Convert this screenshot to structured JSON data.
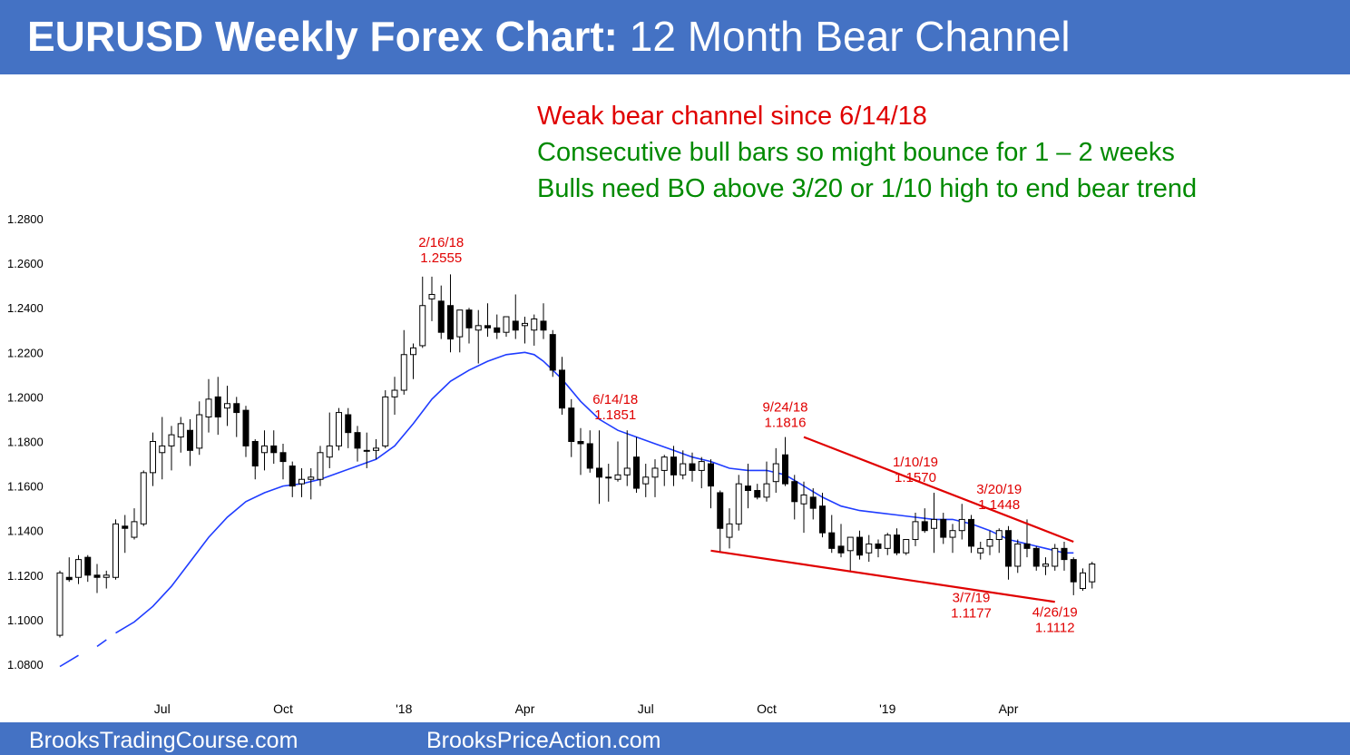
{
  "header": {
    "title_bold": "EURUSD Weekly Forex Chart:",
    "title_rest": "12 Month Bear Channel"
  },
  "notes": [
    {
      "text": "Weak bear channel since 6/14/18",
      "color": "#e00000"
    },
    {
      "text": "Consecutive bull bars so might bounce for 1 – 2 weeks",
      "color": "#008a00"
    },
    {
      "text": "Bulls need BO above 3/20 or 1/10 high to end bear trend",
      "color": "#008a00"
    }
  ],
  "footer": {
    "left": "BrooksTradingCourse.com",
    "right": "BrooksPriceAction.com"
  },
  "colors": {
    "accent": "#4472c4",
    "annotation": "#e00000",
    "moving_average": "#1f3cff",
    "bear_candle": "#000000",
    "bull_candle": "#ffffff"
  },
  "chart_data": {
    "type": "candlestick",
    "title": "",
    "xlabel": "",
    "ylabel": "",
    "ylim": [
      1.07,
      1.285
    ],
    "y_ticks": [
      "1.0800",
      "1.1000",
      "1.1200",
      "1.1400",
      "1.1600",
      "1.1800",
      "1.2000",
      "1.2200",
      "1.2400",
      "1.2600",
      "1.2800"
    ],
    "x_ticks": [
      {
        "label": "Jul",
        "week": 11
      },
      {
        "label": "Oct",
        "week": 24
      },
      {
        "label": "'18",
        "week": 37
      },
      {
        "label": "Apr",
        "week": 50
      },
      {
        "label": "Jul",
        "week": 63
      },
      {
        "label": "Oct",
        "week": 76
      },
      {
        "label": "'19",
        "week": 89
      },
      {
        "label": "Apr",
        "week": 102
      }
    ],
    "candles": [
      {
        "o": 1.093,
        "h": 1.122,
        "l": 1.092,
        "c": 1.121
      },
      {
        "o": 1.119,
        "h": 1.128,
        "l": 1.117,
        "c": 1.118
      },
      {
        "o": 1.119,
        "h": 1.129,
        "l": 1.116,
        "c": 1.127
      },
      {
        "o": 1.128,
        "h": 1.129,
        "l": 1.117,
        "c": 1.12
      },
      {
        "o": 1.12,
        "h": 1.125,
        "l": 1.112,
        "c": 1.119
      },
      {
        "o": 1.119,
        "h": 1.122,
        "l": 1.114,
        "c": 1.12
      },
      {
        "o": 1.119,
        "h": 1.145,
        "l": 1.118,
        "c": 1.143
      },
      {
        "o": 1.142,
        "h": 1.147,
        "l": 1.13,
        "c": 1.141
      },
      {
        "o": 1.137,
        "h": 1.15,
        "l": 1.136,
        "c": 1.144
      },
      {
        "o": 1.143,
        "h": 1.167,
        "l": 1.142,
        "c": 1.166
      },
      {
        "o": 1.166,
        "h": 1.184,
        "l": 1.16,
        "c": 1.18
      },
      {
        "o": 1.175,
        "h": 1.191,
        "l": 1.163,
        "c": 1.178
      },
      {
        "o": 1.178,
        "h": 1.187,
        "l": 1.167,
        "c": 1.183
      },
      {
        "o": 1.182,
        "h": 1.191,
        "l": 1.175,
        "c": 1.188
      },
      {
        "o": 1.185,
        "h": 1.19,
        "l": 1.169,
        "c": 1.176
      },
      {
        "o": 1.177,
        "h": 1.198,
        "l": 1.174,
        "c": 1.192
      },
      {
        "o": 1.191,
        "h": 1.208,
        "l": 1.184,
        "c": 1.199
      },
      {
        "o": 1.2,
        "h": 1.209,
        "l": 1.183,
        "c": 1.191
      },
      {
        "o": 1.195,
        "h": 1.205,
        "l": 1.187,
        "c": 1.197
      },
      {
        "o": 1.197,
        "h": 1.2,
        "l": 1.182,
        "c": 1.193
      },
      {
        "o": 1.194,
        "h": 1.196,
        "l": 1.173,
        "c": 1.178
      },
      {
        "o": 1.18,
        "h": 1.181,
        "l": 1.163,
        "c": 1.169
      },
      {
        "o": 1.175,
        "h": 1.185,
        "l": 1.167,
        "c": 1.178
      },
      {
        "o": 1.178,
        "h": 1.185,
        "l": 1.17,
        "c": 1.175
      },
      {
        "o": 1.175,
        "h": 1.179,
        "l": 1.163,
        "c": 1.171
      },
      {
        "o": 1.169,
        "h": 1.171,
        "l": 1.155,
        "c": 1.16
      },
      {
        "o": 1.161,
        "h": 1.168,
        "l": 1.155,
        "c": 1.163
      },
      {
        "o": 1.163,
        "h": 1.168,
        "l": 1.154,
        "c": 1.164
      },
      {
        "o": 1.163,
        "h": 1.178,
        "l": 1.16,
        "c": 1.175
      },
      {
        "o": 1.173,
        "h": 1.193,
        "l": 1.168,
        "c": 1.178
      },
      {
        "o": 1.178,
        "h": 1.195,
        "l": 1.176,
        "c": 1.193
      },
      {
        "o": 1.192,
        "h": 1.195,
        "l": 1.177,
        "c": 1.184
      },
      {
        "o": 1.184,
        "h": 1.187,
        "l": 1.171,
        "c": 1.177
      },
      {
        "o": 1.176,
        "h": 1.184,
        "l": 1.168,
        "c": 1.176
      },
      {
        "o": 1.176,
        "h": 1.181,
        "l": 1.172,
        "c": 1.177
      },
      {
        "o": 1.178,
        "h": 1.203,
        "l": 1.177,
        "c": 1.2
      },
      {
        "o": 1.2,
        "h": 1.209,
        "l": 1.192,
        "c": 1.203
      },
      {
        "o": 1.203,
        "h": 1.23,
        "l": 1.201,
        "c": 1.219
      },
      {
        "o": 1.219,
        "h": 1.224,
        "l": 1.208,
        "c": 1.222
      },
      {
        "o": 1.223,
        "h": 1.254,
        "l": 1.222,
        "c": 1.241
      },
      {
        "o": 1.244,
        "h": 1.254,
        "l": 1.234,
        "c": 1.246
      },
      {
        "o": 1.243,
        "h": 1.25,
        "l": 1.226,
        "c": 1.229
      },
      {
        "o": 1.241,
        "h": 1.255,
        "l": 1.22,
        "c": 1.226
      },
      {
        "o": 1.227,
        "h": 1.237,
        "l": 1.22,
        "c": 1.239
      },
      {
        "o": 1.239,
        "h": 1.24,
        "l": 1.224,
        "c": 1.231
      },
      {
        "o": 1.23,
        "h": 1.239,
        "l": 1.215,
        "c": 1.232
      },
      {
        "o": 1.232,
        "h": 1.242,
        "l": 1.227,
        "c": 1.231
      },
      {
        "o": 1.231,
        "h": 1.237,
        "l": 1.226,
        "c": 1.229
      },
      {
        "o": 1.229,
        "h": 1.236,
        "l": 1.227,
        "c": 1.236
      },
      {
        "o": 1.234,
        "h": 1.246,
        "l": 1.226,
        "c": 1.23
      },
      {
        "o": 1.232,
        "h": 1.236,
        "l": 1.224,
        "c": 1.233
      },
      {
        "o": 1.23,
        "h": 1.237,
        "l": 1.223,
        "c": 1.235
      },
      {
        "o": 1.234,
        "h": 1.242,
        "l": 1.226,
        "c": 1.23
      },
      {
        "o": 1.228,
        "h": 1.23,
        "l": 1.209,
        "c": 1.212
      },
      {
        "o": 1.212,
        "h": 1.218,
        "l": 1.192,
        "c": 1.195
      },
      {
        "o": 1.195,
        "h": 1.199,
        "l": 1.173,
        "c": 1.18
      },
      {
        "o": 1.18,
        "h": 1.186,
        "l": 1.165,
        "c": 1.179
      },
      {
        "o": 1.179,
        "h": 1.185,
        "l": 1.166,
        "c": 1.168
      },
      {
        "o": 1.168,
        "h": 1.185,
        "l": 1.152,
        "c": 1.164
      },
      {
        "o": 1.164,
        "h": 1.17,
        "l": 1.153,
        "c": 1.164
      },
      {
        "o": 1.163,
        "h": 1.18,
        "l": 1.162,
        "c": 1.165
      },
      {
        "o": 1.165,
        "h": 1.185,
        "l": 1.16,
        "c": 1.168
      },
      {
        "o": 1.173,
        "h": 1.182,
        "l": 1.157,
        "c": 1.159
      },
      {
        "o": 1.161,
        "h": 1.17,
        "l": 1.155,
        "c": 1.164
      },
      {
        "o": 1.164,
        "h": 1.172,
        "l": 1.155,
        "c": 1.168
      },
      {
        "o": 1.167,
        "h": 1.174,
        "l": 1.16,
        "c": 1.173
      },
      {
        "o": 1.173,
        "h": 1.178,
        "l": 1.16,
        "c": 1.165
      },
      {
        "o": 1.165,
        "h": 1.176,
        "l": 1.163,
        "c": 1.17
      },
      {
        "o": 1.17,
        "h": 1.175,
        "l": 1.162,
        "c": 1.167
      },
      {
        "o": 1.167,
        "h": 1.173,
        "l": 1.159,
        "c": 1.171
      },
      {
        "o": 1.17,
        "h": 1.172,
        "l": 1.15,
        "c": 1.16
      },
      {
        "o": 1.157,
        "h": 1.158,
        "l": 1.13,
        "c": 1.141
      },
      {
        "o": 1.137,
        "h": 1.15,
        "l": 1.132,
        "c": 1.143
      },
      {
        "o": 1.143,
        "h": 1.165,
        "l": 1.14,
        "c": 1.161
      },
      {
        "o": 1.16,
        "h": 1.17,
        "l": 1.15,
        "c": 1.158
      },
      {
        "o": 1.158,
        "h": 1.161,
        "l": 1.154,
        "c": 1.155
      },
      {
        "o": 1.155,
        "h": 1.171,
        "l": 1.153,
        "c": 1.161
      },
      {
        "o": 1.162,
        "h": 1.177,
        "l": 1.157,
        "c": 1.17
      },
      {
        "o": 1.174,
        "h": 1.182,
        "l": 1.16,
        "c": 1.161
      },
      {
        "o": 1.162,
        "h": 1.165,
        "l": 1.145,
        "c": 1.153
      },
      {
        "o": 1.152,
        "h": 1.162,
        "l": 1.139,
        "c": 1.156
      },
      {
        "o": 1.155,
        "h": 1.159,
        "l": 1.145,
        "c": 1.15
      },
      {
        "o": 1.151,
        "h": 1.157,
        "l": 1.137,
        "c": 1.139
      },
      {
        "o": 1.139,
        "h": 1.147,
        "l": 1.13,
        "c": 1.132
      },
      {
        "o": 1.133,
        "h": 1.143,
        "l": 1.128,
        "c": 1.13
      },
      {
        "o": 1.131,
        "h": 1.137,
        "l": 1.122,
        "c": 1.137
      },
      {
        "o": 1.137,
        "h": 1.14,
        "l": 1.127,
        "c": 1.129
      },
      {
        "o": 1.13,
        "h": 1.138,
        "l": 1.126,
        "c": 1.134
      },
      {
        "o": 1.134,
        "h": 1.136,
        "l": 1.128,
        "c": 1.132
      },
      {
        "o": 1.132,
        "h": 1.139,
        "l": 1.129,
        "c": 1.138
      },
      {
        "o": 1.138,
        "h": 1.141,
        "l": 1.129,
        "c": 1.13
      },
      {
        "o": 1.13,
        "h": 1.136,
        "l": 1.129,
        "c": 1.136
      },
      {
        "o": 1.136,
        "h": 1.148,
        "l": 1.133,
        "c": 1.144
      },
      {
        "o": 1.144,
        "h": 1.15,
        "l": 1.139,
        "c": 1.14
      },
      {
        "o": 1.141,
        "h": 1.157,
        "l": 1.13,
        "c": 1.145
      },
      {
        "o": 1.145,
        "h": 1.148,
        "l": 1.134,
        "c": 1.137
      },
      {
        "o": 1.137,
        "h": 1.143,
        "l": 1.13,
        "c": 1.14
      },
      {
        "o": 1.14,
        "h": 1.152,
        "l": 1.136,
        "c": 1.145
      },
      {
        "o": 1.145,
        "h": 1.147,
        "l": 1.13,
        "c": 1.133
      },
      {
        "o": 1.13,
        "h": 1.135,
        "l": 1.127,
        "c": 1.132
      },
      {
        "o": 1.133,
        "h": 1.14,
        "l": 1.129,
        "c": 1.136
      },
      {
        "o": 1.136,
        "h": 1.141,
        "l": 1.13,
        "c": 1.14
      },
      {
        "o": 1.14,
        "h": 1.142,
        "l": 1.118,
        "c": 1.124
      },
      {
        "o": 1.124,
        "h": 1.136,
        "l": 1.121,
        "c": 1.134
      },
      {
        "o": 1.134,
        "h": 1.145,
        "l": 1.128,
        "c": 1.132
      },
      {
        "o": 1.132,
        "h": 1.133,
        "l": 1.122,
        "c": 1.124
      },
      {
        "o": 1.124,
        "h": 1.128,
        "l": 1.12,
        "c": 1.125
      },
      {
        "o": 1.124,
        "h": 1.134,
        "l": 1.122,
        "c": 1.132
      },
      {
        "o": 1.132,
        "h": 1.135,
        "l": 1.122,
        "c": 1.127
      },
      {
        "o": 1.127,
        "h": 1.128,
        "l": 1.111,
        "c": 1.117
      },
      {
        "o": 1.114,
        "h": 1.123,
        "l": 1.113,
        "c": 1.121
      },
      {
        "o": 1.117,
        "h": 1.126,
        "l": 1.114,
        "c": 1.125
      }
    ],
    "moving_average": [
      [
        0,
        1.079
      ],
      [
        2,
        1.084
      ],
      [
        4,
        1.088
      ],
      [
        5,
        1.091
      ],
      [
        6,
        1.094
      ],
      [
        8,
        1.099
      ],
      [
        10,
        1.106
      ],
      [
        12,
        1.115
      ],
      [
        14,
        1.126
      ],
      [
        16,
        1.137
      ],
      [
        18,
        1.146
      ],
      [
        20,
        1.153
      ],
      [
        22,
        1.157
      ],
      [
        24,
        1.16
      ],
      [
        26,
        1.161
      ],
      [
        28,
        1.163
      ],
      [
        30,
        1.166
      ],
      [
        32,
        1.169
      ],
      [
        34,
        1.172
      ],
      [
        36,
        1.178
      ],
      [
        38,
        1.188
      ],
      [
        40,
        1.199
      ],
      [
        42,
        1.207
      ],
      [
        44,
        1.212
      ],
      [
        46,
        1.216
      ],
      [
        48,
        1.219
      ],
      [
        50,
        1.22
      ],
      [
        51,
        1.219
      ],
      [
        52,
        1.216
      ],
      [
        54,
        1.208
      ],
      [
        56,
        1.198
      ],
      [
        58,
        1.19
      ],
      [
        60,
        1.185
      ],
      [
        62,
        1.182
      ],
      [
        64,
        1.179
      ],
      [
        66,
        1.176
      ],
      [
        68,
        1.173
      ],
      [
        70,
        1.171
      ],
      [
        72,
        1.168
      ],
      [
        74,
        1.167
      ],
      [
        76,
        1.167
      ],
      [
        78,
        1.165
      ],
      [
        80,
        1.16
      ],
      [
        82,
        1.155
      ],
      [
        84,
        1.151
      ],
      [
        86,
        1.149
      ],
      [
        88,
        1.148
      ],
      [
        90,
        1.147
      ],
      [
        92,
        1.146
      ],
      [
        94,
        1.145
      ],
      [
        96,
        1.145
      ],
      [
        98,
        1.143
      ],
      [
        100,
        1.14
      ],
      [
        102,
        1.136
      ],
      [
        104,
        1.134
      ],
      [
        106,
        1.132
      ],
      [
        108,
        1.13
      ],
      [
        109,
        1.13
      ]
    ],
    "ma_gap": [
      [
        3,
        4
      ],
      [
        5,
        6
      ]
    ],
    "channel_lines": [
      {
        "from": [
          80,
          1.182
        ],
        "to": [
          109,
          1.135
        ]
      },
      {
        "from": [
          70,
          1.131
        ],
        "to": [
          107,
          1.108
        ]
      }
    ],
    "annotations": [
      {
        "lines": [
          "2/16/18",
          "1.2555"
        ],
        "week": 41,
        "y": 1.2555,
        "pos": "above"
      },
      {
        "lines": [
          "6/14/18",
          "1.1851"
        ],
        "week": 57,
        "y": 1.1851,
        "pos": "above-right"
      },
      {
        "lines": [
          "9/24/18",
          "1.1816"
        ],
        "week": 78,
        "y": 1.1816,
        "pos": "above"
      },
      {
        "lines": [
          "1/10/19",
          "1.1570"
        ],
        "week": 92,
        "y": 1.157,
        "pos": "above"
      },
      {
        "lines": [
          "3/20/19",
          "1.1448"
        ],
        "week": 101,
        "y": 1.1448,
        "pos": "above"
      },
      {
        "lines": [
          "3/7/19",
          "1.1177"
        ],
        "week": 98,
        "y": 1.1177,
        "pos": "below"
      },
      {
        "lines": [
          "4/26/19",
          "1.1112"
        ],
        "week": 107,
        "y": 1.1112,
        "pos": "below"
      }
    ]
  }
}
